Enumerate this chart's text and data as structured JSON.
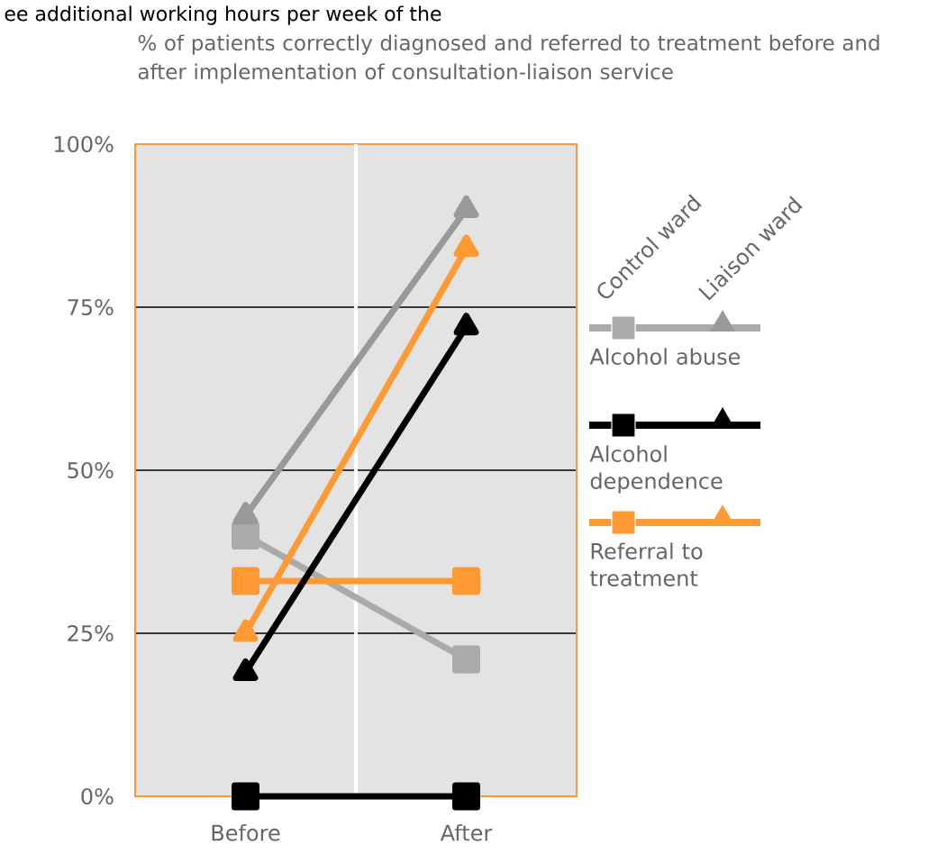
{
  "chart_data": {
    "type": "line",
    "title": "% of patients correctly diagnosed and referred to treatment before and after implementation of consultation-liaison service",
    "annotations": [
      "ee additional working hours per week of the",
      "Control ward",
      "Liaison ward"
    ],
    "categories": [
      "Before",
      "After"
    ],
    "ylim": [
      0,
      100
    ],
    "yticks": [
      {
        "value": 0,
        "label": "0%"
      },
      {
        "value": 25,
        "label": "25%"
      },
      {
        "value": 50,
        "label": "50%"
      },
      {
        "value": 75,
        "label": "75%"
      },
      {
        "value": 100,
        "label": "100%"
      }
    ],
    "grid": "y",
    "legend": "right",
    "series": [
      {
        "name": "Alcohol abuse",
        "color": "#aaaaaa",
        "marker": "square",
        "values": [
          40,
          21
        ]
      },
      {
        "name": "Alcohol dependence",
        "color": "#000000",
        "marker": "square",
        "values": [
          0,
          0
        ]
      },
      {
        "name": "Referral to treatment",
        "color": "#ff9933",
        "marker": "square",
        "values": [
          33,
          33
        ]
      },
      {
        "color": "#999999",
        "marker": "triangle",
        "values": [
          43,
          90
        ]
      },
      {
        "color": "#000000",
        "marker": "triangle",
        "values": [
          19,
          72
        ]
      },
      {
        "color": "#ff9933",
        "marker": "triangle",
        "values": [
          25,
          84
        ]
      }
    ]
  }
}
